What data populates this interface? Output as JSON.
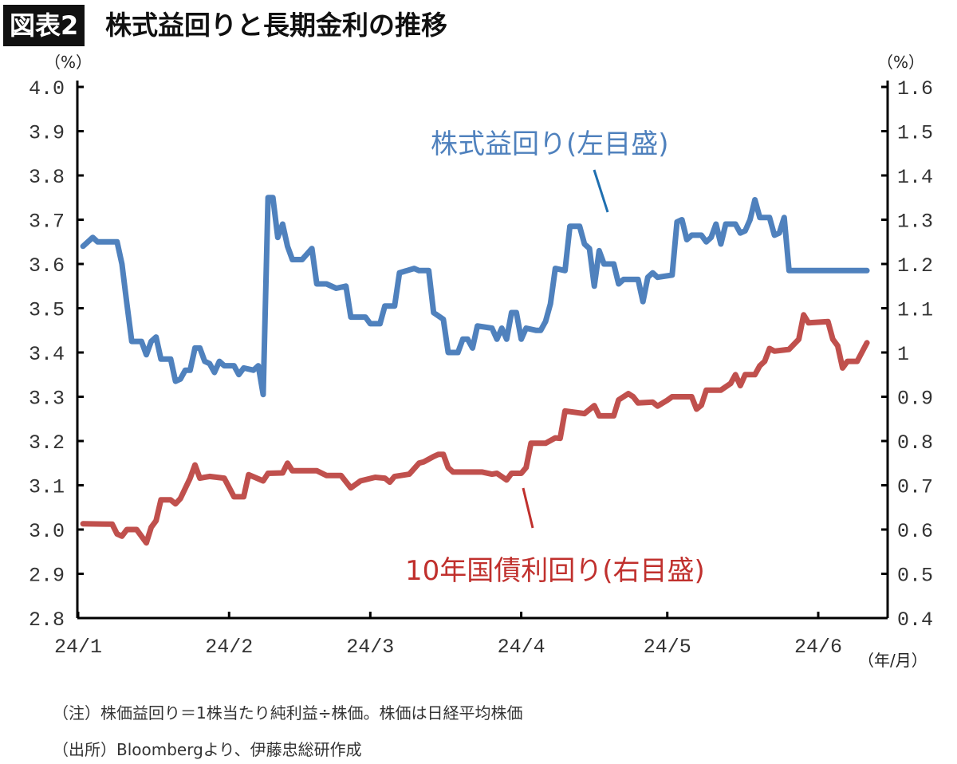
{
  "header": {
    "badge": "図表2",
    "title": "株式益回りと長期金利の推移"
  },
  "units": {
    "left": "（%）",
    "right": "（%）",
    "x": "（年/月）"
  },
  "notes": [
    "（注）株価益回り＝1株当たり純利益÷株価。株価は日経平均株価",
    "（出所）Bloombergより、伊藤忠総研作成"
  ],
  "chart_data": {
    "type": "line",
    "title": "株式益回りと長期金利の推移",
    "x_ticks": [
      "24/1",
      "24/2",
      "24/3",
      "24/4",
      "24/5",
      "24/6"
    ],
    "x_tick_dates": [
      "2024-01-01",
      "2024-02-01",
      "2024-03-01",
      "2024-04-01",
      "2024-05-01",
      "2024-06-01"
    ],
    "xlabel": "（年/月）",
    "y_left": {
      "label": "（%）",
      "range": [
        2.8,
        4.0
      ],
      "ticks": [
        "2.8",
        "2.9",
        "3.0",
        "3.1",
        "3.2",
        "3.3",
        "3.4",
        "3.5",
        "3.6",
        "3.7",
        "3.8",
        "3.9",
        "4.0"
      ]
    },
    "y_right": {
      "label": "（%）",
      "range": [
        0.4,
        1.6
      ],
      "ticks": [
        "0.4",
        "0.5",
        "0.6",
        "0.7",
        "0.8",
        "0.9",
        "1",
        "1.1",
        "1.2",
        "1.3",
        "1.4",
        "1.5",
        "1.6"
      ]
    },
    "grid": false,
    "legend": "inline annotations",
    "series": [
      {
        "name": "株式益回り(左目盛)",
        "axis": "left",
        "color": "#4f81bd",
        "points": [
          [
            "2024-01-02",
            3.64
          ],
          [
            "2024-01-04",
            3.66
          ],
          [
            "2024-01-05",
            3.65
          ],
          [
            "2024-01-09",
            3.65
          ],
          [
            "2024-01-10",
            3.6
          ],
          [
            "2024-01-11",
            3.51
          ],
          [
            "2024-01-12",
            3.425
          ],
          [
            "2024-01-14",
            3.425
          ],
          [
            "2024-01-15",
            3.395
          ],
          [
            "2024-01-16",
            3.425
          ],
          [
            "2024-01-17",
            3.435
          ],
          [
            "2024-01-18",
            3.385
          ],
          [
            "2024-01-20",
            3.385
          ],
          [
            "2024-01-21",
            3.335
          ],
          [
            "2024-01-22",
            3.34
          ],
          [
            "2024-01-23",
            3.36
          ],
          [
            "2024-01-24",
            3.36
          ],
          [
            "2024-01-25",
            3.41
          ],
          [
            "2024-01-26",
            3.41
          ],
          [
            "2024-01-27",
            3.38
          ],
          [
            "2024-01-28",
            3.375
          ],
          [
            "2024-01-29",
            3.355
          ],
          [
            "2024-01-30",
            3.38
          ],
          [
            "2024-01-31",
            3.37
          ],
          [
            "2024-02-02",
            3.37
          ],
          [
            "2024-02-03",
            3.35
          ],
          [
            "2024-02-04",
            3.365
          ],
          [
            "2024-02-06",
            3.36
          ],
          [
            "2024-02-07",
            3.37
          ],
          [
            "2024-02-08",
            3.305
          ],
          [
            "2024-02-09",
            3.75
          ],
          [
            "2024-02-10",
            3.75
          ],
          [
            "2024-02-11",
            3.66
          ],
          [
            "2024-02-12",
            3.69
          ],
          [
            "2024-02-13",
            3.64
          ],
          [
            "2024-02-14",
            3.61
          ],
          [
            "2024-02-16",
            3.61
          ],
          [
            "2024-02-18",
            3.635
          ],
          [
            "2024-02-19",
            3.555
          ],
          [
            "2024-02-21",
            3.555
          ],
          [
            "2024-02-23",
            3.545
          ],
          [
            "2024-02-25",
            3.55
          ],
          [
            "2024-02-26",
            3.48
          ],
          [
            "2024-02-29",
            3.48
          ],
          [
            "2024-03-01",
            3.465
          ],
          [
            "2024-03-03",
            3.465
          ],
          [
            "2024-03-04",
            3.505
          ],
          [
            "2024-03-06",
            3.505
          ],
          [
            "2024-03-07",
            3.58
          ],
          [
            "2024-03-10",
            3.59
          ],
          [
            "2024-03-11",
            3.585
          ],
          [
            "2024-03-13",
            3.585
          ],
          [
            "2024-03-14",
            3.49
          ],
          [
            "2024-03-16",
            3.475
          ],
          [
            "2024-03-17",
            3.4
          ],
          [
            "2024-03-19",
            3.4
          ],
          [
            "2024-03-20",
            3.43
          ],
          [
            "2024-03-21",
            3.43
          ],
          [
            "2024-03-22",
            3.41
          ],
          [
            "2024-03-23",
            3.46
          ],
          [
            "2024-03-26",
            3.455
          ],
          [
            "2024-03-27",
            3.43
          ],
          [
            "2024-03-28",
            3.455
          ],
          [
            "2024-03-29",
            3.43
          ],
          [
            "2024-03-30",
            3.49
          ],
          [
            "2024-03-31",
            3.49
          ],
          [
            "2024-04-01",
            3.43
          ],
          [
            "2024-04-02",
            3.455
          ],
          [
            "2024-04-04",
            3.45
          ],
          [
            "2024-04-05",
            3.45
          ],
          [
            "2024-04-06",
            3.47
          ],
          [
            "2024-04-07",
            3.51
          ],
          [
            "2024-04-08",
            3.59
          ],
          [
            "2024-04-10",
            3.585
          ],
          [
            "2024-04-11",
            3.685
          ],
          [
            "2024-04-13",
            3.685
          ],
          [
            "2024-04-14",
            3.645
          ],
          [
            "2024-04-15",
            3.635
          ],
          [
            "2024-04-16",
            3.55
          ],
          [
            "2024-04-17",
            3.63
          ],
          [
            "2024-04-18",
            3.6
          ],
          [
            "2024-04-20",
            3.6
          ],
          [
            "2024-04-21",
            3.555
          ],
          [
            "2024-04-22",
            3.565
          ],
          [
            "2024-04-25",
            3.565
          ],
          [
            "2024-04-26",
            3.515
          ],
          [
            "2024-04-27",
            3.57
          ],
          [
            "2024-04-28",
            3.58
          ],
          [
            "2024-04-29",
            3.57
          ],
          [
            "2024-05-02",
            3.575
          ],
          [
            "2024-05-03",
            3.695
          ],
          [
            "2024-05-04",
            3.7
          ],
          [
            "2024-05-05",
            3.655
          ],
          [
            "2024-05-06",
            3.665
          ],
          [
            "2024-05-08",
            3.665
          ],
          [
            "2024-05-09",
            3.65
          ],
          [
            "2024-05-10",
            3.66
          ],
          [
            "2024-05-11",
            3.69
          ],
          [
            "2024-05-12",
            3.645
          ],
          [
            "2024-05-13",
            3.69
          ],
          [
            "2024-05-15",
            3.69
          ],
          [
            "2024-05-16",
            3.67
          ],
          [
            "2024-05-17",
            3.675
          ],
          [
            "2024-05-18",
            3.7
          ],
          [
            "2024-05-19",
            3.745
          ],
          [
            "2024-05-20",
            3.705
          ],
          [
            "2024-05-22",
            3.705
          ],
          [
            "2024-05-23",
            3.665
          ],
          [
            "2024-05-24",
            3.67
          ],
          [
            "2024-05-25",
            3.705
          ],
          [
            "2024-05-26",
            3.585
          ],
          [
            "2024-06-11",
            3.585
          ]
        ]
      },
      {
        "name": "10年国債利回り(右目盛)",
        "axis": "right",
        "color": "#c0504d",
        "points": [
          [
            "2024-01-02",
            0.613
          ],
          [
            "2024-01-08",
            0.612
          ],
          [
            "2024-01-09",
            0.59
          ],
          [
            "2024-01-10",
            0.585
          ],
          [
            "2024-01-11",
            0.6
          ],
          [
            "2024-01-13",
            0.6
          ],
          [
            "2024-01-15",
            0.57
          ],
          [
            "2024-01-16",
            0.605
          ],
          [
            "2024-01-17",
            0.62
          ],
          [
            "2024-01-18",
            0.667
          ],
          [
            "2024-01-20",
            0.667
          ],
          [
            "2024-01-21",
            0.658
          ],
          [
            "2024-01-22",
            0.67
          ],
          [
            "2024-01-24",
            0.716
          ],
          [
            "2024-01-25",
            0.746
          ],
          [
            "2024-01-26",
            0.716
          ],
          [
            "2024-01-28",
            0.72
          ],
          [
            "2024-01-31",
            0.716
          ],
          [
            "2024-02-02",
            0.674
          ],
          [
            "2024-02-04",
            0.674
          ],
          [
            "2024-02-05",
            0.724
          ],
          [
            "2024-02-08",
            0.71
          ],
          [
            "2024-02-09",
            0.727
          ],
          [
            "2024-02-12",
            0.728
          ],
          [
            "2024-02-13",
            0.75
          ],
          [
            "2024-02-14",
            0.733
          ],
          [
            "2024-02-19",
            0.733
          ],
          [
            "2024-02-21",
            0.722
          ],
          [
            "2024-02-24",
            0.722
          ],
          [
            "2024-02-26",
            0.694
          ],
          [
            "2024-02-28",
            0.71
          ],
          [
            "2024-03-02",
            0.718
          ],
          [
            "2024-03-04",
            0.716
          ],
          [
            "2024-03-05",
            0.707
          ],
          [
            "2024-03-06",
            0.72
          ],
          [
            "2024-03-09",
            0.725
          ],
          [
            "2024-03-11",
            0.75
          ],
          [
            "2024-03-12",
            0.753
          ],
          [
            "2024-03-14",
            0.765
          ],
          [
            "2024-03-15",
            0.77
          ],
          [
            "2024-03-16",
            0.77
          ],
          [
            "2024-03-17",
            0.74
          ],
          [
            "2024-03-18",
            0.73
          ],
          [
            "2024-03-24",
            0.73
          ],
          [
            "2024-03-26",
            0.725
          ],
          [
            "2024-03-27",
            0.727
          ],
          [
            "2024-03-29",
            0.712
          ],
          [
            "2024-03-30",
            0.727
          ],
          [
            "2024-04-01",
            0.727
          ],
          [
            "2024-04-02",
            0.74
          ],
          [
            "2024-04-03",
            0.795
          ],
          [
            "2024-04-06",
            0.795
          ],
          [
            "2024-04-08",
            0.807
          ],
          [
            "2024-04-09",
            0.806
          ],
          [
            "2024-04-10",
            0.868
          ],
          [
            "2024-04-14",
            0.862
          ],
          [
            "2024-04-16",
            0.88
          ],
          [
            "2024-04-17",
            0.857
          ],
          [
            "2024-04-20",
            0.857
          ],
          [
            "2024-04-21",
            0.893
          ],
          [
            "2024-04-23",
            0.907
          ],
          [
            "2024-04-24",
            0.9
          ],
          [
            "2024-04-25",
            0.886
          ],
          [
            "2024-04-28",
            0.888
          ],
          [
            "2024-04-29",
            0.879
          ],
          [
            "2024-05-01",
            0.892
          ],
          [
            "2024-05-02",
            0.9
          ],
          [
            "2024-05-06",
            0.9
          ],
          [
            "2024-05-07",
            0.872
          ],
          [
            "2024-05-08",
            0.881
          ],
          [
            "2024-05-09",
            0.915
          ],
          [
            "2024-05-12",
            0.915
          ],
          [
            "2024-05-14",
            0.93
          ],
          [
            "2024-05-15",
            0.95
          ],
          [
            "2024-05-16",
            0.925
          ],
          [
            "2024-05-17",
            0.95
          ],
          [
            "2024-05-19",
            0.95
          ],
          [
            "2024-05-20",
            0.97
          ],
          [
            "2024-05-21",
            0.98
          ],
          [
            "2024-05-22",
            1.009
          ],
          [
            "2024-05-23",
            1.003
          ],
          [
            "2024-05-26",
            1.007
          ],
          [
            "2024-05-28",
            1.03
          ],
          [
            "2024-05-29",
            1.085
          ],
          [
            "2024-05-30",
            1.067
          ],
          [
            "2024-06-03",
            1.07
          ],
          [
            "2024-06-04",
            1.03
          ],
          [
            "2024-06-05",
            1.015
          ],
          [
            "2024-06-06",
            0.965
          ],
          [
            "2024-06-07",
            0.98
          ],
          [
            "2024-06-09",
            0.98
          ],
          [
            "2024-06-11",
            1.022
          ]
        ]
      }
    ]
  }
}
